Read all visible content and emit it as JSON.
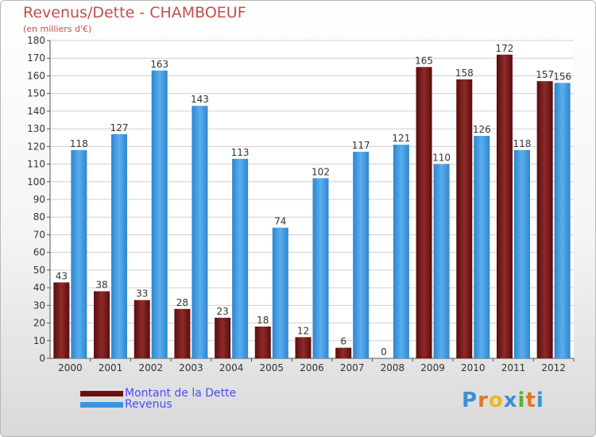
{
  "title": "Revenus/Dette - CHAMBOEUF",
  "subtitle": "(en milliers d'€)",
  "logo": {
    "text": "Proxiti",
    "letters": [
      "P",
      "r",
      "o",
      "x",
      "i",
      "t",
      "i"
    ],
    "letter_colors": [
      "#3a8fd8",
      "#e2762a",
      "#e8b820",
      "#3a8fd8",
      "#5cb030",
      "#e2762a",
      "#3a8fd8"
    ]
  },
  "colors": {
    "dette": "#7a1a1a",
    "revenus": "#3b95de",
    "axis_text": "#333333",
    "grid": "#cfcfcf"
  },
  "chart_data": {
    "type": "bar",
    "categories": [
      "2000",
      "2001",
      "2002",
      "2003",
      "2004",
      "2005",
      "2006",
      "2007",
      "2008",
      "2009",
      "2010",
      "2011",
      "2012"
    ],
    "series": [
      {
        "name": "Montant de la Dette",
        "values": [
          43,
          38,
          33,
          28,
          23,
          18,
          12,
          6,
          0,
          165,
          158,
          172,
          157
        ]
      },
      {
        "name": "Revenus",
        "values": [
          118,
          127,
          163,
          143,
          113,
          74,
          102,
          117,
          121,
          110,
          126,
          118,
          156
        ]
      }
    ],
    "ylim": [
      0,
      180
    ],
    "yticks": [
      0,
      10,
      20,
      30,
      40,
      50,
      60,
      70,
      80,
      90,
      100,
      110,
      120,
      130,
      140,
      150,
      160,
      170,
      180
    ],
    "grid": true,
    "legend": "bottom-left"
  }
}
